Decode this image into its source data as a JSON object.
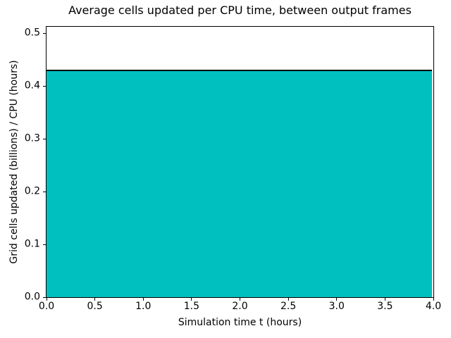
{
  "chart_data": {
    "type": "area",
    "title": "Average cells updated per CPU time, between output frames",
    "xlabel": "Simulation time t (hours)",
    "ylabel": "Grid cells updated (billions) / CPU (hours)",
    "series": [
      {
        "name": "cells updated per CPU time",
        "x": [
          0.0,
          4.0
        ],
        "y": [
          0.43,
          0.43
        ]
      }
    ],
    "xlim": [
      0.0,
      4.0
    ],
    "ylim": [
      0.0,
      0.512
    ],
    "xticks": [
      "0.0",
      "0.5",
      "1.0",
      "1.5",
      "2.0",
      "2.5",
      "3.0",
      "3.5",
      "4.0"
    ],
    "yticks": [
      "0.0",
      "0.1",
      "0.2",
      "0.3",
      "0.4",
      "0.5"
    ],
    "grid": false,
    "legend": null,
    "fill_color": "#00bfbf",
    "line_color": "#000000",
    "axis_color": "#000000",
    "background_color": "#ffffff"
  }
}
